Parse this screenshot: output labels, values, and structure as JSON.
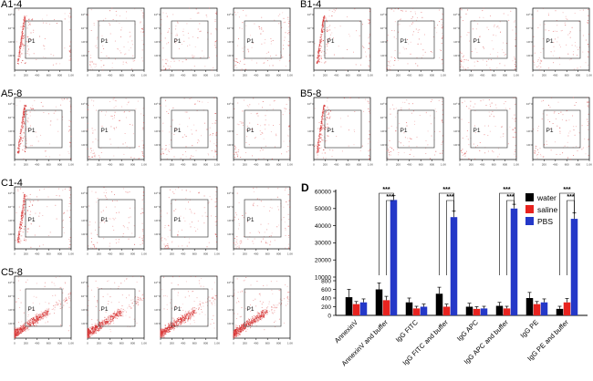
{
  "figure": {
    "background": "#ffffff"
  },
  "scatter_panels": {
    "gate_label": "P1",
    "dot_color": "#e04848",
    "dot_color_dark": "#c82020",
    "x_ticks": [
      "0",
      "200",
      "400",
      "600",
      "800",
      "1.0K"
    ],
    "y_ticks": [
      "10⁵",
      "10⁴",
      "10³",
      "10²"
    ],
    "groups": [
      {
        "label": "A1-4",
        "col": 0,
        "row": 0,
        "plots": [
          "diagonal",
          "sparse",
          "sparse",
          "sparse"
        ]
      },
      {
        "label": "B1-4",
        "col": 1,
        "row": 0,
        "plots": [
          "diagonal",
          "sparse",
          "sparse",
          "sparse"
        ]
      },
      {
        "label": "A5-8",
        "col": 0,
        "row": 1,
        "plots": [
          "diagonal",
          "sparse",
          "sparse",
          "sparse"
        ]
      },
      {
        "label": "B5-8",
        "col": 1,
        "row": 1,
        "plots": [
          "diagonal",
          "sparse",
          "sparse",
          "sparse"
        ]
      },
      {
        "label": "C1-4",
        "col": 0,
        "row": 2,
        "plots": [
          "diagonal",
          "sparse",
          "sparse",
          "sparse"
        ]
      },
      {
        "label": "C5-8",
        "col": 0,
        "row": 3,
        "plots": [
          "dense",
          "dense",
          "dense",
          "dense"
        ]
      }
    ]
  },
  "chart_data": {
    "type": "bar",
    "panel_label": "D",
    "title": "",
    "xlabel": "",
    "ylabel": "",
    "grid": false,
    "legend_position": "top-right",
    "categories": [
      "AnnexinV",
      "AnnexinV and buffer",
      "IgG FITC",
      "IgG FITC and buffer",
      "IgG APC",
      "IgG APC and buffer",
      "IgG PE",
      "IgG PE and buffer"
    ],
    "series": [
      {
        "name": "water",
        "color": "#000000",
        "values": [
          420,
          600,
          300,
          500,
          200,
          220,
          400,
          150
        ],
        "errors": [
          180,
          150,
          100,
          150,
          80,
          80,
          130,
          60
        ]
      },
      {
        "name": "saline",
        "color": "#e8231f",
        "values": [
          260,
          350,
          160,
          200,
          150,
          160,
          260,
          300
        ],
        "errors": [
          60,
          90,
          50,
          60,
          50,
          50,
          60,
          90
        ]
      },
      {
        "name": "PBS",
        "color": "#2438c8",
        "values": [
          300,
          55000,
          200,
          45000,
          160,
          50000,
          300,
          44000
        ],
        "errors": [
          80,
          2500,
          60,
          3500,
          50,
          2500,
          80,
          3500
        ]
      }
    ],
    "y_axis": {
      "lower_ticks": [
        0,
        200,
        400,
        600,
        800
      ],
      "upper_ticks": [
        10000,
        20000,
        30000,
        40000,
        50000,
        60000
      ],
      "break_between": [
        800,
        10000
      ]
    },
    "significance": [
      {
        "category_index": 1,
        "label": "***",
        "pairs": [
          [
            "water",
            "PBS"
          ],
          [
            "saline",
            "PBS"
          ]
        ]
      },
      {
        "category_index": 3,
        "label": "***",
        "pairs": [
          [
            "water",
            "PBS"
          ],
          [
            "saline",
            "PBS"
          ]
        ]
      },
      {
        "category_index": 5,
        "label": "***",
        "pairs": [
          [
            "water",
            "PBS"
          ],
          [
            "saline",
            "PBS"
          ]
        ]
      },
      {
        "category_index": 7,
        "label": "***",
        "pairs": [
          [
            "water",
            "PBS"
          ],
          [
            "saline",
            "PBS"
          ]
        ]
      }
    ]
  }
}
